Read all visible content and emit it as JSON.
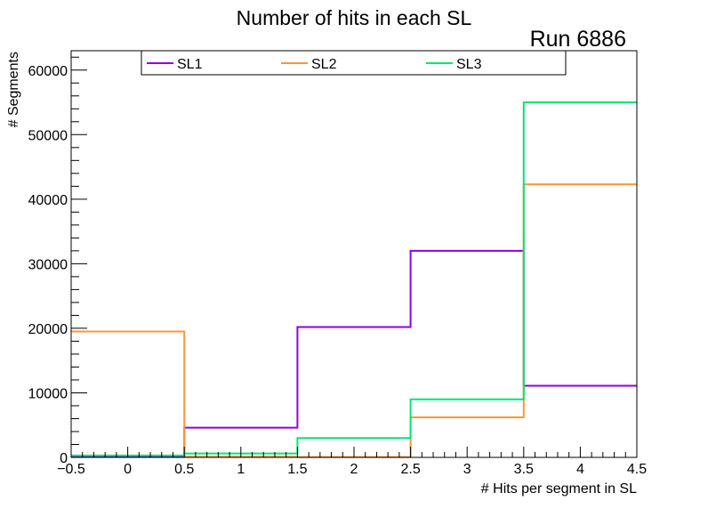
{
  "chart_data": {
    "type": "histogram-step",
    "title": "Number of hits in each SL",
    "annotation": "Run 6886",
    "xlabel": "# Hits per segment in SL",
    "ylabel": "# Segments",
    "xlim": [
      -0.5,
      4.5
    ],
    "ylim": [
      0,
      63000
    ],
    "grid": false,
    "legend_position": "top",
    "x_ticks": [
      -0.5,
      0,
      0.5,
      1,
      1.5,
      2,
      2.5,
      3,
      3.5,
      4,
      4.5
    ],
    "x_tick_labels": [
      "−0.5",
      "0",
      "0.5",
      "1",
      "1.5",
      "2",
      "2.5",
      "3",
      "3.5",
      "4",
      "4.5"
    ],
    "y_ticks": [
      0,
      10000,
      20000,
      30000,
      40000,
      50000,
      60000
    ],
    "y_tick_labels": [
      "0",
      "10000",
      "20000",
      "30000",
      "40000",
      "50000",
      "60000"
    ],
    "bin_edges": [
      -0.5,
      0.5,
      1.5,
      2.5,
      3.5,
      4.5
    ],
    "series": [
      {
        "name": "SL1",
        "color": "#8f00e6",
        "values": [
          200,
          4600,
          20200,
          32000,
          11100
        ]
      },
      {
        "name": "SL2",
        "color": "#ff9633",
        "values": [
          19500,
          100,
          50,
          6200,
          42300
        ]
      },
      {
        "name": "SL3",
        "color": "#00e676",
        "values": [
          300,
          600,
          3000,
          9000,
          55000
        ]
      }
    ]
  }
}
